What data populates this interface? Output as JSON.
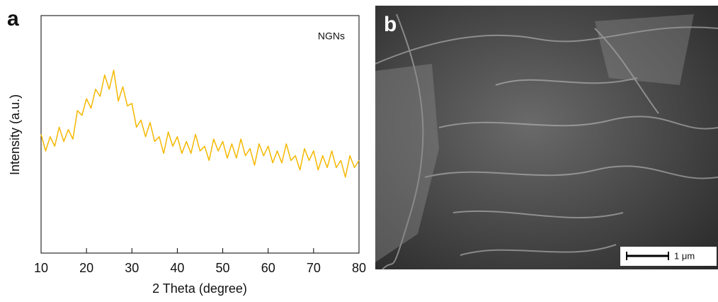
{
  "panel_labels": [
    "a",
    "b"
  ],
  "image": {
    "scale_bar_label": "1 μm"
  },
  "chart_data": {
    "type": "line",
    "xlabel": "2 Theta (degree)",
    "ylabel": "Intensity (a.u.)",
    "x": [
      10,
      11,
      12,
      13,
      14,
      15,
      16,
      17,
      18,
      19,
      20,
      21,
      22,
      23,
      24,
      25,
      26,
      27,
      28,
      29,
      30,
      31,
      32,
      33,
      34,
      35,
      36,
      37,
      38,
      39,
      40,
      41,
      42,
      43,
      44,
      45,
      46,
      47,
      48,
      49,
      50,
      51,
      52,
      53,
      54,
      55,
      56,
      57,
      58,
      59,
      60,
      61,
      62,
      63,
      64,
      65,
      66,
      67,
      68,
      69,
      70,
      71,
      72,
      73,
      74,
      75,
      76,
      77,
      78,
      79,
      80
    ],
    "series": [
      {
        "name": "NGNs",
        "color": "#f5b800",
        "values": [
          50,
          43,
          49,
          45,
          53,
          47,
          52,
          48,
          60,
          58,
          65,
          61,
          69,
          66,
          75,
          69,
          77,
          64,
          70,
          62,
          63,
          53,
          56,
          49,
          55,
          47,
          49,
          42,
          51,
          45,
          49,
          42,
          47,
          42,
          50,
          43,
          45,
          39,
          48,
          43,
          47,
          40,
          46,
          40,
          48,
          41,
          44,
          37,
          46,
          41,
          45,
          38,
          43,
          38,
          46,
          39,
          41,
          35,
          44,
          39,
          43,
          35,
          41,
          36,
          43,
          36,
          39,
          32,
          41,
          36,
          39
        ]
      }
    ],
    "xlim": [
      10,
      80
    ],
    "xticks": [
      10,
      20,
      30,
      40,
      50,
      60,
      70,
      80
    ],
    "ylim": [
      0,
      100
    ]
  }
}
